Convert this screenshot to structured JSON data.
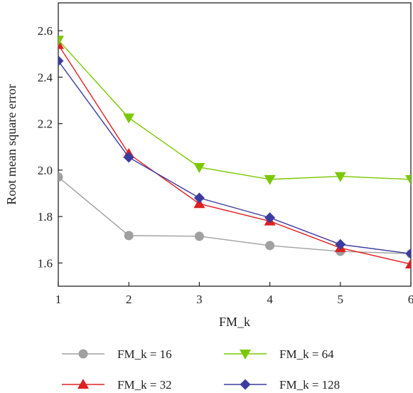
{
  "chart_data": {
    "type": "line",
    "title": "",
    "xlabel": "FM_k",
    "ylabel": "Root mean square error",
    "x": [
      1,
      2,
      3,
      4,
      5,
      6
    ],
    "xlim": [
      1,
      6
    ],
    "ylim": [
      1.5,
      2.72
    ],
    "xticks": [
      "1",
      "2",
      "3",
      "4",
      "5",
      "6"
    ],
    "yticks": [
      "1.6",
      "1.8",
      "2.0",
      "2.2",
      "2.4",
      "2.6"
    ],
    "grid": false,
    "legend_position": "bottom",
    "series": [
      {
        "name": "FM_k = 16",
        "color": "#a0a0a0",
        "marker": "circle",
        "values": [
          1.97,
          1.718,
          1.715,
          1.675,
          1.65,
          1.64
        ]
      },
      {
        "name": "FM_k = 32",
        "color": "#e02020",
        "marker": "triangle-up",
        "values": [
          2.54,
          2.07,
          1.855,
          1.78,
          1.665,
          1.595
        ]
      },
      {
        "name": "FM_k = 64",
        "color": "#7bc800",
        "marker": "triangle-down",
        "values": [
          2.56,
          2.225,
          2.012,
          1.96,
          1.973,
          1.96
        ]
      },
      {
        "name": "FM_k = 128",
        "color": "#3b3ba0",
        "marker": "diamond",
        "values": [
          2.47,
          2.055,
          1.88,
          1.795,
          1.68,
          1.64
        ]
      }
    ]
  }
}
